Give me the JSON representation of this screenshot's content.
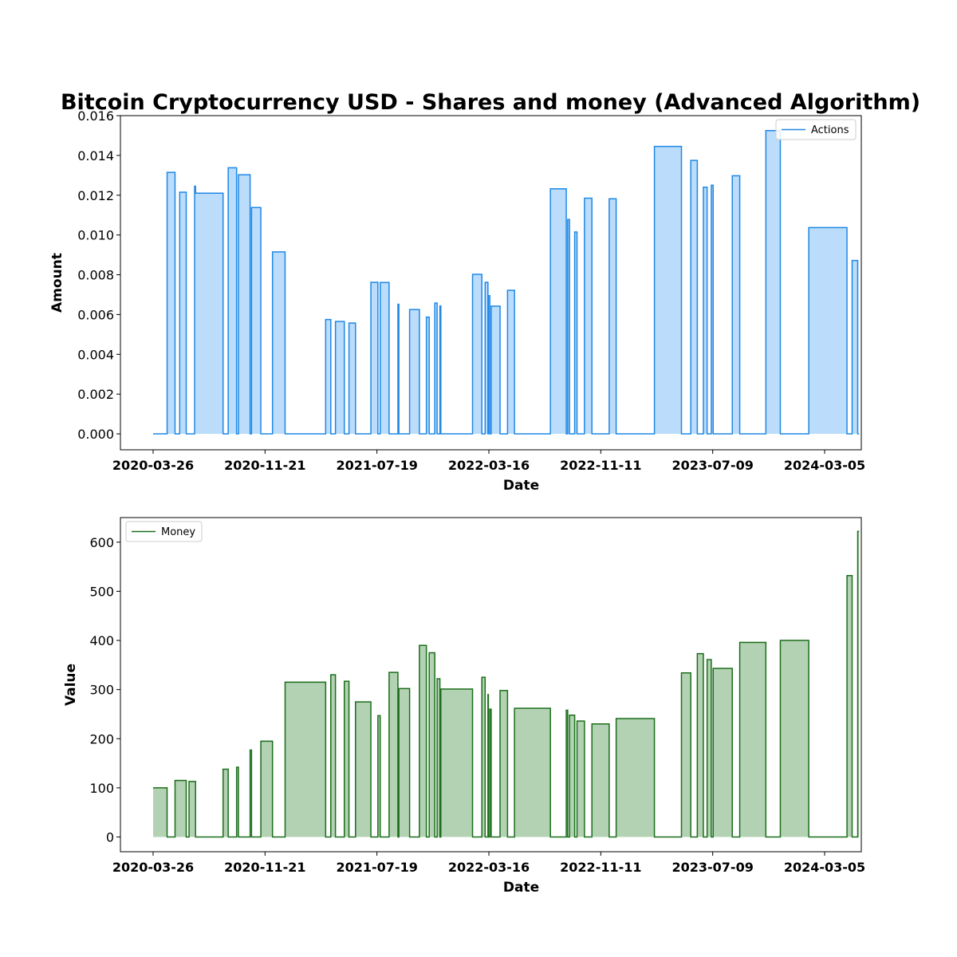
{
  "title": "Bitcoin Cryptocurrency USD - Shares and money (Advanced Algorithm)",
  "chart_data": [
    {
      "type": "area",
      "step": "post",
      "ylabel": "Amount",
      "xlabel": "Date",
      "x_ticks": [
        "2020-03-26",
        "2020-11-21",
        "2021-07-19",
        "2022-03-16",
        "2022-11-11",
        "2023-07-09",
        "2024-03-05"
      ],
      "x_range": [
        "2020-03-26",
        "2024-03-18"
      ],
      "ylim": [
        -0.0008,
        0.016
      ],
      "y_ticks": [
        0.0,
        0.002,
        0.004,
        0.006,
        0.008,
        0.01,
        0.012,
        0.014,
        0.016
      ],
      "y_tick_labels": [
        "0.000",
        "0.002",
        "0.004",
        "0.006",
        "0.008",
        "0.010",
        "0.012",
        "0.014",
        "0.016"
      ],
      "legend": "top-right",
      "grid": false,
      "series": [
        {
          "name": "Actions",
          "color": "#1e88e5",
          "fill": "#bbdcfb",
          "points": [
            [
              "2020-03-26",
              0.0
            ],
            [
              "2020-04-25",
              0.01315
            ],
            [
              "2020-05-12",
              0.0
            ],
            [
              "2020-05-22",
              0.01215
            ],
            [
              "2020-06-05",
              0.0
            ],
            [
              "2020-06-23",
              0.01245
            ],
            [
              "2020-06-25",
              0.0121
            ],
            [
              "2020-08-23",
              0.0
            ],
            [
              "2020-09-03",
              0.01338
            ],
            [
              "2020-09-21",
              0.0
            ],
            [
              "2020-09-25",
              0.01303
            ],
            [
              "2020-10-20",
              0.0
            ],
            [
              "2020-10-23",
              0.01138
            ],
            [
              "2020-11-12",
              0.0
            ],
            [
              "2020-12-07",
              0.00915
            ],
            [
              "2021-01-03",
              0.0
            ],
            [
              "2021-03-31",
              0.00575
            ],
            [
              "2021-04-11",
              0.0
            ],
            [
              "2021-04-21",
              0.00565
            ],
            [
              "2021-05-10",
              0.0
            ],
            [
              "2021-05-20",
              0.00557
            ],
            [
              "2021-06-03",
              0.0
            ],
            [
              "2021-07-06",
              0.00762
            ],
            [
              "2021-07-21",
              0.0
            ],
            [
              "2021-07-26",
              0.00761
            ],
            [
              "2021-08-14",
              0.0
            ],
            [
              "2021-09-02",
              0.00652
            ],
            [
              "2021-09-04",
              0.0
            ],
            [
              "2021-09-27",
              0.00625
            ],
            [
              "2021-10-18",
              0.0
            ],
            [
              "2021-11-02",
              0.00587
            ],
            [
              "2021-11-08",
              0.0
            ],
            [
              "2021-11-20",
              0.00658
            ],
            [
              "2021-11-25",
              0.0
            ],
            [
              "2021-12-01",
              0.00643
            ],
            [
              "2021-12-03",
              0.0
            ],
            [
              "2022-02-09",
              0.00802
            ],
            [
              "2022-03-01",
              0.0
            ],
            [
              "2022-03-08",
              0.00762
            ],
            [
              "2022-03-14",
              0.0
            ],
            [
              "2022-03-15",
              0.00695
            ],
            [
              "2022-03-18",
              0.0
            ],
            [
              "2022-03-21",
              0.00642
            ],
            [
              "2022-04-09",
              0.0
            ],
            [
              "2022-04-25",
              0.00722
            ],
            [
              "2022-05-10",
              0.0
            ],
            [
              "2022-07-26",
              0.01232
            ],
            [
              "2022-08-29",
              0.0
            ],
            [
              "2022-09-01",
              0.01078
            ],
            [
              "2022-09-05",
              0.0
            ],
            [
              "2022-09-16",
              0.01015
            ],
            [
              "2022-09-21",
              0.0
            ],
            [
              "2022-10-07",
              0.01185
            ],
            [
              "2022-10-23",
              0.0
            ],
            [
              "2022-11-29",
              0.01182
            ],
            [
              "2022-12-14",
              0.0
            ],
            [
              "2023-03-06",
              0.01445
            ],
            [
              "2023-05-03",
              0.0
            ],
            [
              "2023-05-23",
              0.01375
            ],
            [
              "2023-06-06",
              0.0
            ],
            [
              "2023-06-19",
              0.0124
            ],
            [
              "2023-06-27",
              0.0
            ],
            [
              "2023-07-06",
              0.0125
            ],
            [
              "2023-07-10",
              0.0
            ],
            [
              "2023-08-20",
              0.01298
            ],
            [
              "2023-09-05",
              0.0
            ],
            [
              "2023-10-31",
              0.01525
            ],
            [
              "2023-12-01",
              0.0
            ],
            [
              "2024-01-31",
              0.01037
            ],
            [
              "2024-04-22",
              0.0
            ],
            [
              "2024-05-03",
              0.00872
            ],
            [
              "2024-05-15",
              0.0
            ],
            [
              "2024-05-18",
              0.0
            ]
          ]
        }
      ]
    },
    {
      "type": "area",
      "step": "post",
      "ylabel": "Value",
      "xlabel": "Date",
      "x_ticks": [
        "2020-03-26",
        "2020-11-21",
        "2021-07-19",
        "2022-03-16",
        "2022-11-11",
        "2023-07-09",
        "2024-03-05"
      ],
      "x_range": [
        "2020-03-26",
        "2024-03-18"
      ],
      "ylim": [
        -30,
        650
      ],
      "y_ticks": [
        0,
        100,
        200,
        300,
        400,
        500,
        600
      ],
      "y_tick_labels": [
        "0",
        "100",
        "200",
        "300",
        "400",
        "500",
        "600"
      ],
      "legend": "top-left",
      "grid": false,
      "series": [
        {
          "name": "Money",
          "color": "#1a6e1a",
          "fill": "#b3d1b3",
          "points": [
            [
              "2020-03-26",
              100
            ],
            [
              "2020-04-25",
              0
            ],
            [
              "2020-05-12",
              115
            ],
            [
              "2020-06-05",
              0
            ],
            [
              "2020-06-11",
              113
            ],
            [
              "2020-06-23",
              113
            ],
            [
              "2020-06-25",
              0
            ],
            [
              "2020-08-23",
              138
            ],
            [
              "2020-09-03",
              0
            ],
            [
              "2020-09-21",
              142
            ],
            [
              "2020-09-25",
              0
            ],
            [
              "2020-10-20",
              177
            ],
            [
              "2020-10-23",
              0
            ],
            [
              "2020-11-12",
              195
            ],
            [
              "2020-12-07",
              0
            ],
            [
              "2021-01-03",
              315
            ],
            [
              "2021-03-31",
              0
            ],
            [
              "2021-04-11",
              330
            ],
            [
              "2021-04-21",
              0
            ],
            [
              "2021-05-10",
              317
            ],
            [
              "2021-05-20",
              0
            ],
            [
              "2021-06-03",
              275
            ],
            [
              "2021-07-06",
              0
            ],
            [
              "2021-07-21",
              247
            ],
            [
              "2021-07-26",
              0
            ],
            [
              "2021-08-14",
              335
            ],
            [
              "2021-09-02",
              0
            ],
            [
              "2021-09-04",
              302
            ],
            [
              "2021-09-27",
              0
            ],
            [
              "2021-10-18",
              390
            ],
            [
              "2021-11-02",
              0
            ],
            [
              "2021-11-08",
              375
            ],
            [
              "2021-11-20",
              0
            ],
            [
              "2021-11-25",
              322
            ],
            [
              "2021-12-01",
              0
            ],
            [
              "2021-12-03",
              301
            ],
            [
              "2022-02-09",
              0
            ],
            [
              "2022-03-01",
              325
            ],
            [
              "2022-03-08",
              0
            ],
            [
              "2022-03-14",
              290
            ],
            [
              "2022-03-15",
              0
            ],
            [
              "2022-03-18",
              260
            ],
            [
              "2022-03-21",
              0
            ],
            [
              "2022-04-09",
              298
            ],
            [
              "2022-04-25",
              0
            ],
            [
              "2022-05-10",
              262
            ],
            [
              "2022-07-26",
              0
            ],
            [
              "2022-08-29",
              258
            ],
            [
              "2022-09-01",
              0
            ],
            [
              "2022-09-05",
              248
            ],
            [
              "2022-09-16",
              0
            ],
            [
              "2022-09-21",
              236
            ],
            [
              "2022-10-07",
              0
            ],
            [
              "2022-10-23",
              230
            ],
            [
              "2022-11-29",
              0
            ],
            [
              "2022-12-14",
              241
            ],
            [
              "2023-03-06",
              0
            ],
            [
              "2023-05-03",
              334
            ],
            [
              "2023-05-23",
              0
            ],
            [
              "2023-06-06",
              373
            ],
            [
              "2023-06-19",
              0
            ],
            [
              "2023-06-27",
              361
            ],
            [
              "2023-07-06",
              0
            ],
            [
              "2023-07-10",
              343
            ],
            [
              "2023-08-20",
              0
            ],
            [
              "2023-09-05",
              396
            ],
            [
              "2023-10-31",
              0
            ],
            [
              "2023-12-01",
              400
            ],
            [
              "2024-01-31",
              0
            ],
            [
              "2024-04-22",
              532
            ],
            [
              "2024-05-03",
              0
            ],
            [
              "2024-05-15",
              622
            ],
            [
              "2024-05-18",
              622
            ]
          ]
        }
      ]
    }
  ]
}
